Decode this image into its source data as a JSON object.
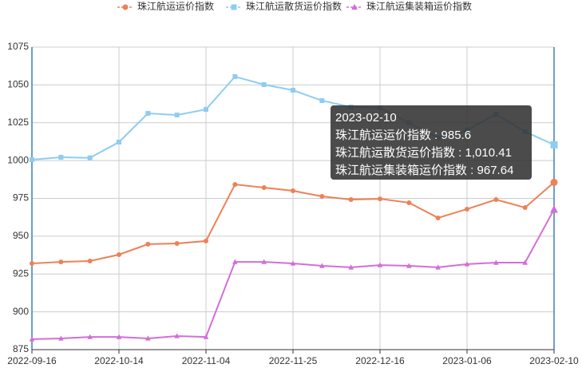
{
  "chart_data": {
    "type": "line",
    "categories": [
      "2022-09-16",
      null,
      null,
      "2022-10-14",
      null,
      null,
      "2022-11-04",
      null,
      null,
      "2022-11-25",
      null,
      null,
      "2022-12-16",
      null,
      null,
      "2023-01-06",
      null,
      null,
      "2023-02-10"
    ],
    "series": [
      {
        "name": "珠江航运运价指数",
        "color": "#ee8156",
        "marker": "circle",
        "values": [
          932.0,
          933.0,
          933.6,
          937.8,
          944.7,
          945.2,
          946.8,
          984.2,
          982.1,
          980.0,
          976.3,
          974.2,
          974.7,
          972.1,
          962.1,
          967.9,
          974.2,
          968.9,
          985.6
        ]
      },
      {
        "name": "珠江航运散货运价指数",
        "color": "#8ecdf0",
        "marker": "square",
        "values": [
          1000.6,
          1002.2,
          1001.8,
          1012.2,
          1031.2,
          1030.1,
          1033.8,
          1055.5,
          1050.2,
          1046.5,
          1039.6,
          1035.4,
          1034.9,
          1025.0,
          1015.0,
          1020.0,
          1030.7,
          1019.1,
          1010.41
        ]
      },
      {
        "name": "珠江航运集装箱运价指数",
        "color": "#d36ed8",
        "marker": "triangle",
        "values": [
          881.9,
          882.4,
          883.4,
          883.4,
          882.4,
          884.0,
          883.4,
          933.0,
          933.0,
          932.0,
          930.4,
          929.4,
          930.9,
          930.4,
          929.4,
          931.5,
          932.5,
          932.5,
          967.64
        ]
      }
    ],
    "ylim": [
      875,
      1075
    ],
    "yticks": [
      875,
      900,
      925,
      950,
      975,
      1000,
      1025,
      1050,
      1075
    ],
    "grid": true,
    "tooltip": {
      "category": "2023-02-10",
      "separator": " : ",
      "value_labels": [
        "985.6",
        "1,010.41",
        "967.64"
      ]
    }
  }
}
